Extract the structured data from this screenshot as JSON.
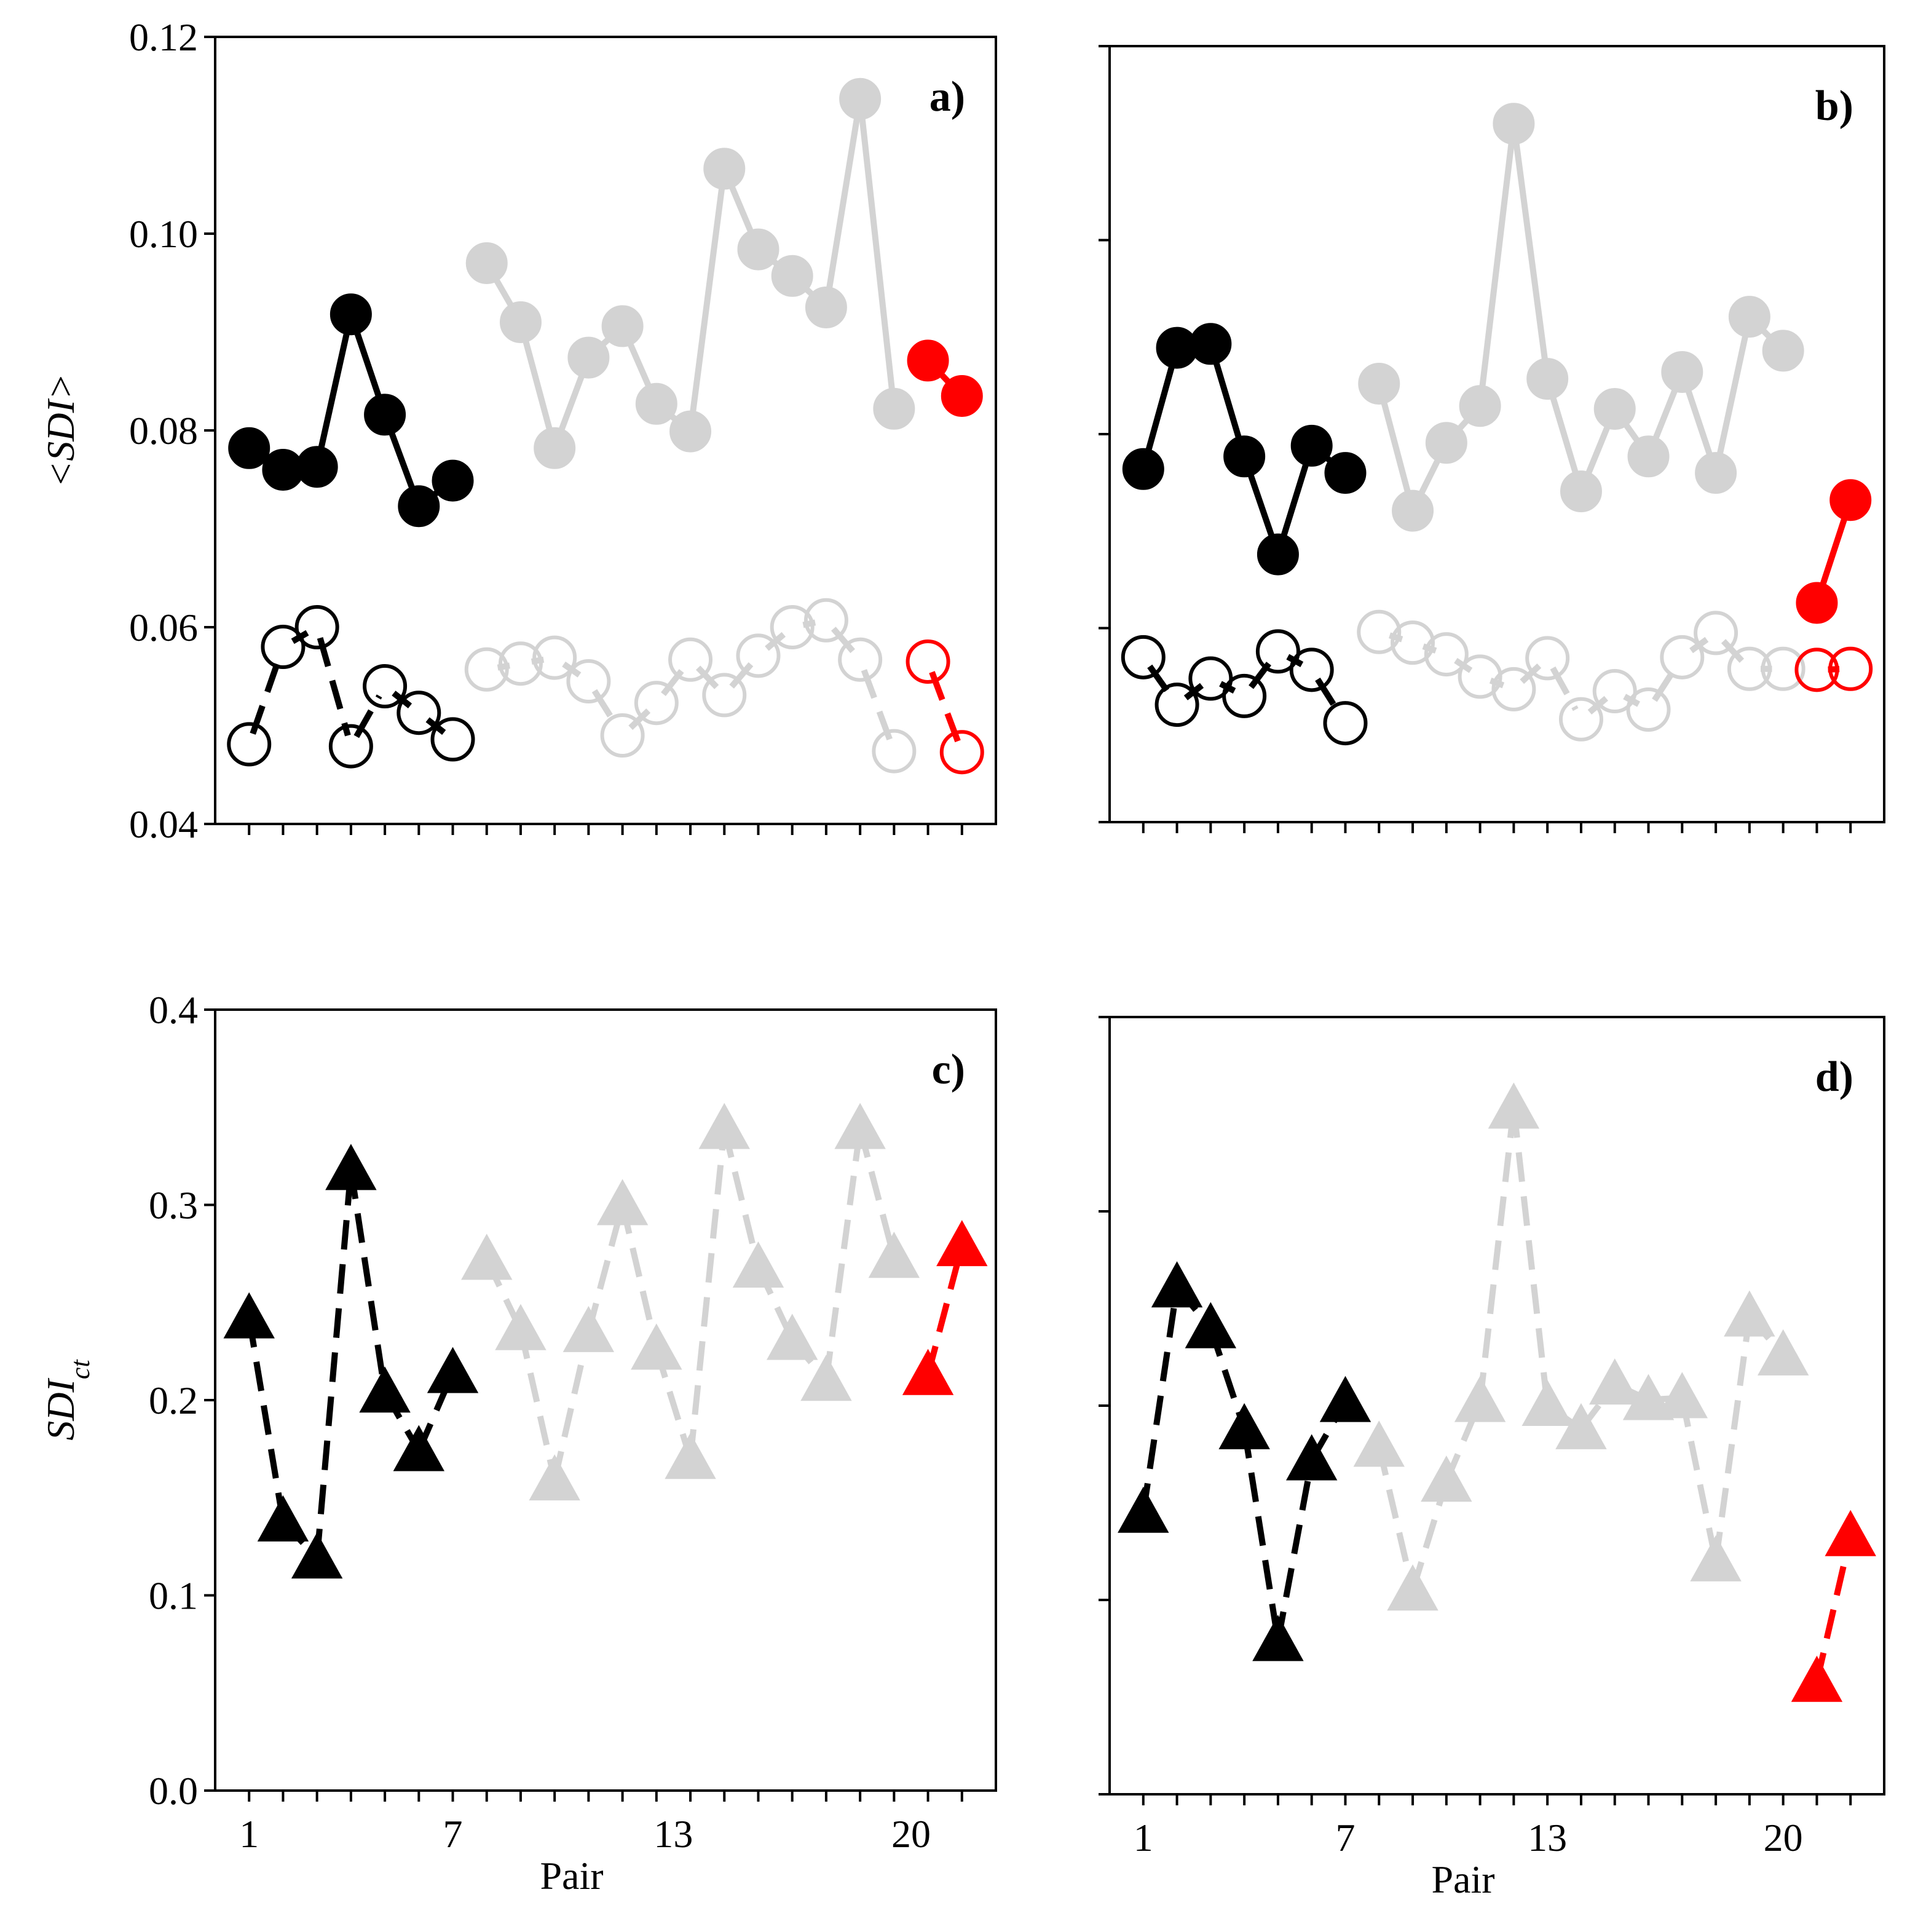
{
  "chart_data": [
    {
      "id": "a",
      "type": "line",
      "panel_label": "a)",
      "ylabel": "<SDI>",
      "xlabel": "",
      "ylim": [
        0.04,
        0.12
      ],
      "yticks": [
        0.04,
        0.06,
        0.08,
        0.1,
        0.12
      ],
      "yticklabels": [
        "0.04",
        "0.06",
        "0.08",
        "0.10",
        "0.12"
      ],
      "show_ytick_labels": true,
      "xlim": [
        0,
        23
      ],
      "xticks_minor": [
        1,
        2,
        3,
        4,
        5,
        6,
        7,
        8,
        9,
        10,
        11,
        12,
        13,
        14,
        15,
        16,
        17,
        18,
        19,
        20,
        21,
        22
      ],
      "xtick_labels": [],
      "series": [
        {
          "name": "black-filled",
          "color": "#000000",
          "marker": "circle-filled",
          "line": "solid",
          "x": [
            1,
            2,
            3,
            4,
            5,
            6,
            7
          ],
          "values": [
            0.0782,
            0.076,
            0.0763,
            0.0918,
            0.0816,
            0.0723,
            0.0749
          ]
        },
        {
          "name": "gray-filled",
          "color": "#d3d3d3",
          "marker": "circle-filled",
          "line": "solid",
          "x": [
            8,
            9,
            10,
            11,
            12,
            13,
            14,
            15,
            16,
            17,
            18,
            19,
            20
          ],
          "values": [
            0.097,
            0.091,
            0.0782,
            0.0874,
            0.0906,
            0.0827,
            0.0799,
            0.1066,
            0.0984,
            0.0957,
            0.0925,
            0.1137,
            0.0822
          ]
        },
        {
          "name": "red-filled",
          "color": "#ff0000",
          "marker": "circle-filled",
          "line": "solid",
          "x": [
            21,
            22
          ],
          "values": [
            0.0871,
            0.0835
          ]
        },
        {
          "name": "black-open",
          "color": "#000000",
          "marker": "circle-open",
          "line": "dashed",
          "x": [
            1,
            2,
            3,
            4,
            5,
            6,
            7
          ],
          "values": [
            0.0481,
            0.058,
            0.06,
            0.0479,
            0.054,
            0.0513,
            0.0486
          ]
        },
        {
          "name": "gray-open",
          "color": "#d3d3d3",
          "marker": "circle-open",
          "line": "dashed",
          "x": [
            8,
            9,
            10,
            11,
            12,
            13,
            14,
            15,
            16,
            17,
            18,
            19,
            20
          ],
          "values": [
            0.0557,
            0.0563,
            0.0569,
            0.0545,
            0.049,
            0.0523,
            0.0567,
            0.0531,
            0.0571,
            0.06,
            0.0607,
            0.0567,
            0.0474
          ]
        },
        {
          "name": "red-open",
          "color": "#ff0000",
          "marker": "circle-open",
          "line": "dashed",
          "x": [
            21,
            22
          ],
          "values": [
            0.0565,
            0.0473
          ]
        }
      ]
    },
    {
      "id": "b",
      "type": "line",
      "panel_label": "b)",
      "ylabel": "",
      "xlabel": "",
      "ylim": [
        0.04,
        0.12
      ],
      "yticks": [
        0.04,
        0.06,
        0.08,
        0.1,
        0.12
      ],
      "yticklabels": [],
      "show_ytick_labels": false,
      "xlim": [
        0,
        23
      ],
      "xticks_minor": [
        1,
        2,
        3,
        4,
        5,
        6,
        7,
        8,
        9,
        10,
        11,
        12,
        13,
        14,
        15,
        16,
        17,
        18,
        19,
        20,
        21,
        22
      ],
      "xtick_labels": [],
      "series": [
        {
          "name": "black-filled",
          "color": "#000000",
          "marker": "circle-filled",
          "line": "solid",
          "x": [
            1,
            2,
            3,
            4,
            5,
            6,
            7
          ],
          "values": [
            0.0764,
            0.0889,
            0.0893,
            0.0777,
            0.0676,
            0.0788,
            0.076
          ]
        },
        {
          "name": "gray-filled",
          "color": "#d3d3d3",
          "marker": "circle-filled",
          "line": "solid",
          "x": [
            8,
            9,
            10,
            11,
            12,
            13,
            14,
            15,
            16,
            17,
            18,
            19,
            20
          ],
          "values": [
            0.0852,
            0.0721,
            0.0791,
            0.0829,
            0.112,
            0.0857,
            0.0741,
            0.0826,
            0.0777,
            0.0864,
            0.076,
            0.0921,
            0.0886
          ]
        },
        {
          "name": "red-filled",
          "color": "#ff0000",
          "marker": "circle-filled",
          "line": "solid",
          "x": [
            21,
            22
          ],
          "values": [
            0.0626,
            0.0732
          ]
        },
        {
          "name": "black-open",
          "color": "#000000",
          "marker": "circle-open",
          "line": "dashed",
          "x": [
            1,
            2,
            3,
            4,
            5,
            6,
            7
          ],
          "values": [
            0.057,
            0.0521,
            0.0548,
            0.053,
            0.0576,
            0.0557,
            0.0502
          ]
        },
        {
          "name": "gray-open",
          "color": "#d3d3d3",
          "marker": "circle-open",
          "line": "dashed",
          "x": [
            8,
            9,
            10,
            11,
            12,
            13,
            14,
            15,
            16,
            17,
            18,
            19,
            20
          ],
          "values": [
            0.0596,
            0.0585,
            0.0573,
            0.055,
            0.0537,
            0.0569,
            0.0506,
            0.0535,
            0.0516,
            0.057,
            0.0595,
            0.0558,
            0.0558
          ]
        },
        {
          "name": "red-open",
          "color": "#ff0000",
          "marker": "circle-open",
          "line": "dashed",
          "x": [
            21,
            22
          ],
          "values": [
            0.0557,
            0.0558
          ]
        }
      ]
    },
    {
      "id": "c",
      "type": "line",
      "panel_label": "c)",
      "ylabel": "SDI",
      "ylabel_subscript": "ct",
      "xlabel": "Pair",
      "ylim": [
        0.0,
        0.4
      ],
      "yticks": [
        0.0,
        0.1,
        0.2,
        0.3,
        0.4
      ],
      "yticklabels": [
        "0.0",
        "0.1",
        "0.2",
        "0.3",
        "0.4"
      ],
      "show_ytick_labels": true,
      "xlim": [
        0,
        23
      ],
      "xticks_minor": [
        1,
        2,
        3,
        4,
        5,
        6,
        7,
        8,
        9,
        10,
        11,
        12,
        13,
        14,
        15,
        16,
        17,
        18,
        19,
        20,
        21,
        22
      ],
      "xtick_labels": [
        {
          "x": 1,
          "label": "1"
        },
        {
          "x": 7,
          "label": "7"
        },
        {
          "x": 13.5,
          "label": "13"
        },
        {
          "x": 20.5,
          "label": "20"
        }
      ],
      "series": [
        {
          "name": "black-triangle",
          "color": "#000000",
          "marker": "triangle",
          "line": "dashed",
          "x": [
            1,
            2,
            3,
            4,
            5,
            6,
            7
          ],
          "values": [
            0.242,
            0.138,
            0.119,
            0.318,
            0.204,
            0.174,
            0.214
          ]
        },
        {
          "name": "gray-triangle",
          "color": "#d3d3d3",
          "marker": "triangle",
          "line": "dashed",
          "x": [
            8,
            9,
            10,
            11,
            12,
            13,
            14,
            15,
            16,
            17,
            18,
            19,
            20
          ],
          "values": [
            0.272,
            0.236,
            0.159,
            0.235,
            0.3,
            0.226,
            0.17,
            0.339,
            0.268,
            0.231,
            0.21,
            0.339,
            0.273
          ]
        },
        {
          "name": "red-triangle",
          "color": "#ff0000",
          "marker": "triangle",
          "line": "dashed",
          "x": [
            21,
            22
          ],
          "values": [
            0.213,
            0.279
          ]
        }
      ]
    },
    {
      "id": "d",
      "type": "line",
      "panel_label": "d)",
      "ylabel": "",
      "xlabel": "Pair",
      "ylim": [
        0.0,
        0.4
      ],
      "yticks": [
        0.0,
        0.1,
        0.2,
        0.3,
        0.4
      ],
      "yticklabels": [],
      "show_ytick_labels": false,
      "xlim": [
        0,
        23
      ],
      "xticks_minor": [
        1,
        2,
        3,
        4,
        5,
        6,
        7,
        8,
        9,
        10,
        11,
        12,
        13,
        14,
        15,
        16,
        17,
        18,
        19,
        20,
        21,
        22
      ],
      "xtick_labels": [
        {
          "x": 1,
          "label": "1"
        },
        {
          "x": 7,
          "label": "7"
        },
        {
          "x": 13,
          "label": "13"
        },
        {
          "x": 20,
          "label": "20"
        }
      ],
      "series": [
        {
          "name": "black-triangle",
          "color": "#000000",
          "marker": "triangle",
          "line": "dashed",
          "x": [
            1,
            2,
            3,
            4,
            5,
            6,
            7
          ],
          "values": [
            0.145,
            0.261,
            0.24,
            0.188,
            0.079,
            0.172,
            0.202
          ]
        },
        {
          "name": "gray-triangle",
          "color": "#d3d3d3",
          "marker": "triangle",
          "line": "dashed",
          "x": [
            8,
            9,
            10,
            11,
            12,
            13,
            14,
            15,
            16,
            17,
            18,
            19,
            20
          ],
          "values": [
            0.179,
            0.105,
            0.161,
            0.202,
            0.353,
            0.2,
            0.188,
            0.211,
            0.203,
            0.204,
            0.12,
            0.246,
            0.226
          ]
        },
        {
          "name": "red-triangle",
          "color": "#ff0000",
          "marker": "triangle",
          "line": "dashed",
          "x": [
            21,
            22
          ],
          "values": [
            0.058,
            0.133
          ]
        }
      ]
    }
  ]
}
